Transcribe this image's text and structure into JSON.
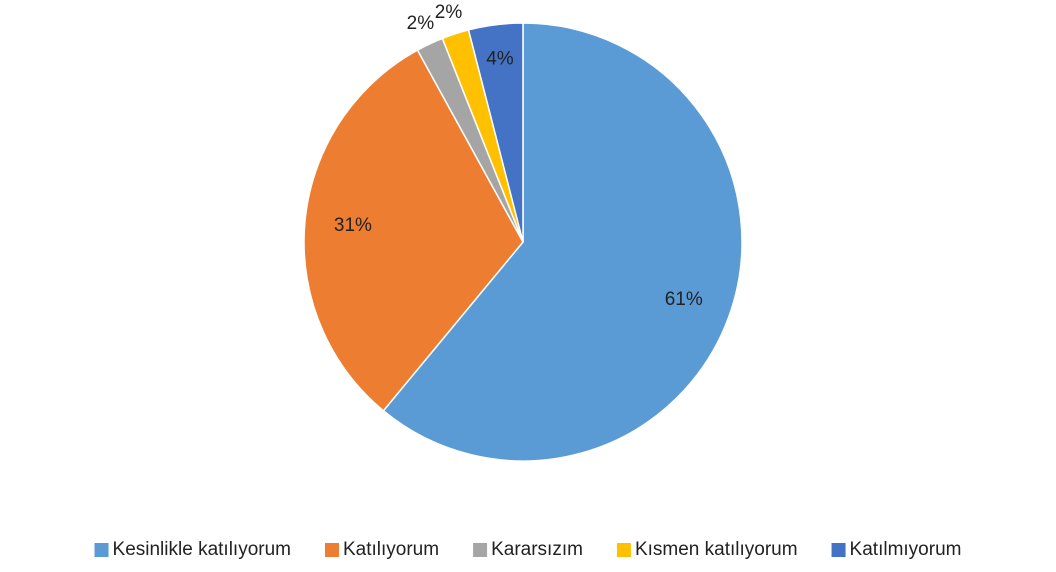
{
  "chart_data": {
    "type": "pie",
    "categories": [
      "Kesinlikle katılıyorum",
      "Katılıyorum",
      "Kararsızım",
      "Kısmen katılıyorum",
      "Katılmıyorum"
    ],
    "values": [
      61,
      31,
      2,
      2,
      4
    ],
    "value_labels": [
      "61%",
      "31%",
      "2%",
      "2%",
      "4%"
    ],
    "colors": [
      "#5b9bd5",
      "#ed7d31",
      "#a5a5a5",
      "#ffc000",
      "#4472c4"
    ],
    "legend": "bottom"
  }
}
